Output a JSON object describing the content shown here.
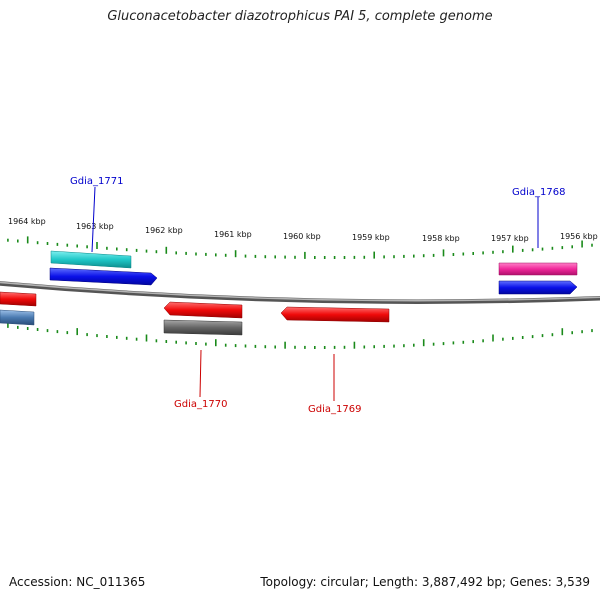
{
  "title": "Gluconacetobacter diazotrophicus PAI 5, complete genome",
  "footer": {
    "accession": "Accession: NC_011365",
    "summary": "Topology: circular; Length: 3,887,492 bp; Genes: 3,539"
  },
  "scale_labels": [
    "1964 kbp",
    "1963 kbp",
    "1962 kbp",
    "1961 kbp",
    "1960 kbp",
    "1959 kbp",
    "1958 kbp",
    "1957 kbp",
    "1956 kbp"
  ],
  "genes": [
    {
      "name": "Gdia_1771",
      "color": "#0000cc"
    },
    {
      "name": "Gdia_1768",
      "color": "#0000cc"
    },
    {
      "name": "Gdia_1770",
      "color": "#cc0000"
    },
    {
      "name": "Gdia_1769",
      "color": "#cc0000"
    }
  ],
  "colors": {
    "cyan": "#20c8c8",
    "blue": "#0a10e8",
    "magenta": "#f0289a",
    "red": "#f00a0a",
    "gray": "#666666",
    "steel": "#4a7ab0",
    "tick": "#1a8a1a",
    "backbone": "#8c8c8c"
  }
}
